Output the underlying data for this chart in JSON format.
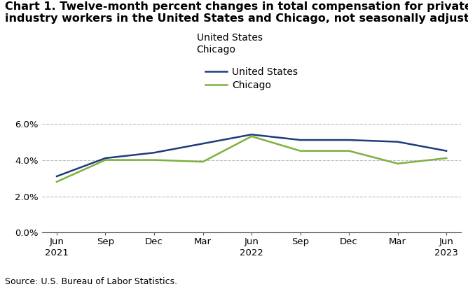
{
  "title_line1": "Chart 1. Twelve-month percent changes in total compensation for private",
  "title_line2": "industry workers in the United States and Chicago, not seasonally adjusted",
  "x_labels": [
    "Jun\n2021",
    "Sep",
    "Dec",
    "Mar",
    "Jun\n2022",
    "Sep",
    "Dec",
    "Mar",
    "Jun\n2023"
  ],
  "us_values": [
    3.1,
    4.1,
    4.4,
    4.9,
    5.4,
    5.1,
    5.1,
    5.0,
    4.5
  ],
  "chicago_values": [
    2.8,
    4.0,
    4.0,
    3.9,
    5.3,
    4.5,
    4.5,
    3.8,
    4.1
  ],
  "us_color": "#1f3d7a",
  "chicago_color": "#7db13f",
  "us_label": "United States",
  "chicago_label": "Chicago",
  "ylim": [
    0.0,
    6.6
  ],
  "yticks": [
    0.0,
    2.0,
    4.0,
    6.0
  ],
  "ytick_labels": [
    "0.0%",
    "2.0%",
    "4.0%",
    "6.0%"
  ],
  "source": "Source: U.S. Bureau of Labor Statistics.",
  "background_color": "#ffffff",
  "grid_color": "#bbbbbb",
  "title_fontsize": 11.5,
  "legend_fontsize": 10,
  "tick_fontsize": 9.5,
  "source_fontsize": 9
}
